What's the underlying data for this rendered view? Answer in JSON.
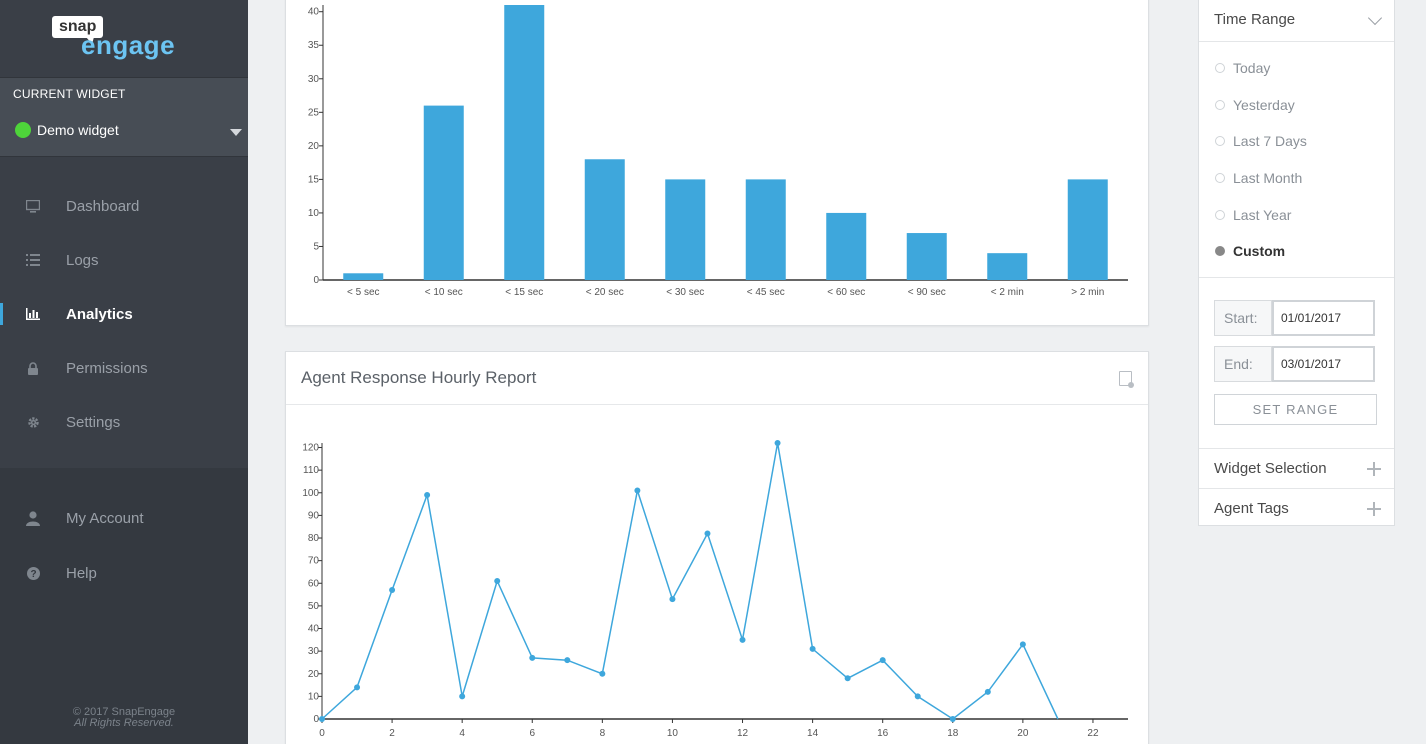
{
  "brand": {
    "snap": "snap",
    "engage": "engage"
  },
  "current_widget": {
    "title": "CURRENT WIDGET",
    "name": "Demo widget",
    "status_color": "#4ed43a"
  },
  "nav": {
    "items": [
      {
        "label": "Dashboard",
        "icon": "monitor-icon"
      },
      {
        "label": "Logs",
        "icon": "list-icon"
      },
      {
        "label": "Analytics",
        "icon": "bar-chart-icon",
        "active": true
      },
      {
        "label": "Permissions",
        "icon": "lock-icon"
      },
      {
        "label": "Settings",
        "icon": "gear-icon"
      }
    ],
    "bottom": [
      {
        "label": "My Account",
        "icon": "user-icon"
      },
      {
        "label": "Help",
        "icon": "help-icon"
      }
    ]
  },
  "copyright": {
    "line1": "© 2017 SnapEngage",
    "line2": "All Rights Reserved."
  },
  "colors": {
    "accent": "#3ea7dc",
    "bar": "#3ea7dc",
    "sidebar": "#3a3f47"
  },
  "chart_data": [
    {
      "type": "bar",
      "title": "",
      "categories": [
        "< 5 sec",
        "< 10 sec",
        "< 15 sec",
        "< 20 sec",
        "< 30 sec",
        "< 45 sec",
        "< 60 sec",
        "< 90 sec",
        "< 2 min",
        "> 2 min"
      ],
      "values": [
        1,
        26,
        41,
        18,
        15,
        15,
        10,
        7,
        4,
        15
      ],
      "yticks": [
        0,
        5,
        10,
        15,
        20,
        25,
        30,
        35,
        40
      ],
      "ylim": [
        0,
        41
      ],
      "grid": false
    },
    {
      "type": "line",
      "title": "Agent Response Hourly Report",
      "x": [
        0,
        1,
        2,
        3,
        4,
        5,
        6,
        7,
        8,
        9,
        10,
        11,
        12,
        13,
        14,
        15,
        16,
        17,
        18,
        19,
        20,
        21
      ],
      "values": [
        0,
        14,
        57,
        99,
        10,
        61,
        27,
        26,
        20,
        101,
        53,
        82,
        35,
        122,
        31,
        18,
        26,
        10,
        0,
        12,
        33,
        0
      ],
      "xticks": [
        0,
        2,
        4,
        6,
        8,
        10,
        12,
        14,
        16,
        18,
        20,
        22
      ],
      "yticks": [
        0,
        10,
        20,
        30,
        40,
        50,
        60,
        70,
        80,
        90,
        100,
        110,
        120
      ],
      "xlim": [
        0,
        23
      ],
      "ylim": [
        0,
        122
      ],
      "grid": false
    }
  ],
  "time_range": {
    "title": "Time Range",
    "options": [
      "Today",
      "Yesterday",
      "Last 7 Days",
      "Last Month",
      "Last Year",
      "Custom"
    ],
    "selected": "Custom",
    "start_label": "Start:",
    "start_value": "01/01/2017",
    "end_label": "End:",
    "end_value": "03/01/2017",
    "set_range": "SET RANGE"
  },
  "accordion": {
    "widget_selection": "Widget Selection",
    "agent_tags": "Agent Tags"
  }
}
